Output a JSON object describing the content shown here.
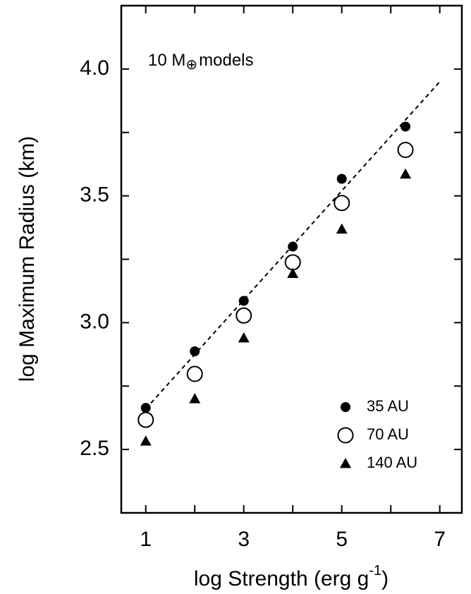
{
  "chart_data": {
    "type": "scatter",
    "annotation": {
      "text": "10 M",
      "subscript": "⊕",
      "rest": "models"
    },
    "x_label": {
      "text": "log Strength (erg g",
      "superscript": "-1",
      "rest": ")"
    },
    "y_label": "log Maximum Radius (km)",
    "x": [
      1,
      2,
      3,
      4,
      5,
      6.3
    ],
    "series": [
      {
        "name": "35 AU",
        "color": "#000000",
        "marker": "filled-circle",
        "values": [
          2.664,
          2.887,
          3.086,
          3.3,
          3.567,
          3.773
        ]
      },
      {
        "name": "70 AU",
        "color": "#000000",
        "marker": "open-circle",
        "values": [
          2.617,
          2.798,
          3.028,
          3.238,
          3.472,
          3.681
        ]
      },
      {
        "name": "140 AU",
        "color": "#000000",
        "marker": "triangle",
        "values": [
          2.533,
          2.7,
          2.94,
          3.194,
          3.369,
          3.586
        ]
      }
    ],
    "fit_line": {
      "x": [
        1,
        7
      ],
      "values": [
        2.66,
        3.95
      ],
      "color": "#000000",
      "dashed": true
    },
    "xlim": [
      0.5,
      7.45
    ],
    "ylim": [
      2.25,
      4.25
    ],
    "xticks": [
      1,
      3,
      5,
      7
    ],
    "x_minor_ticks": [
      2,
      4,
      6
    ],
    "yticks": [
      2.5,
      {
        "value": 3,
        "label": "3.0"
      },
      3.5,
      {
        "value": 4,
        "label": "4.0"
      }
    ],
    "y_minor_ticks": [
      2.75,
      3.25,
      3.75
    ],
    "grid": false,
    "legend": "lower right"
  }
}
